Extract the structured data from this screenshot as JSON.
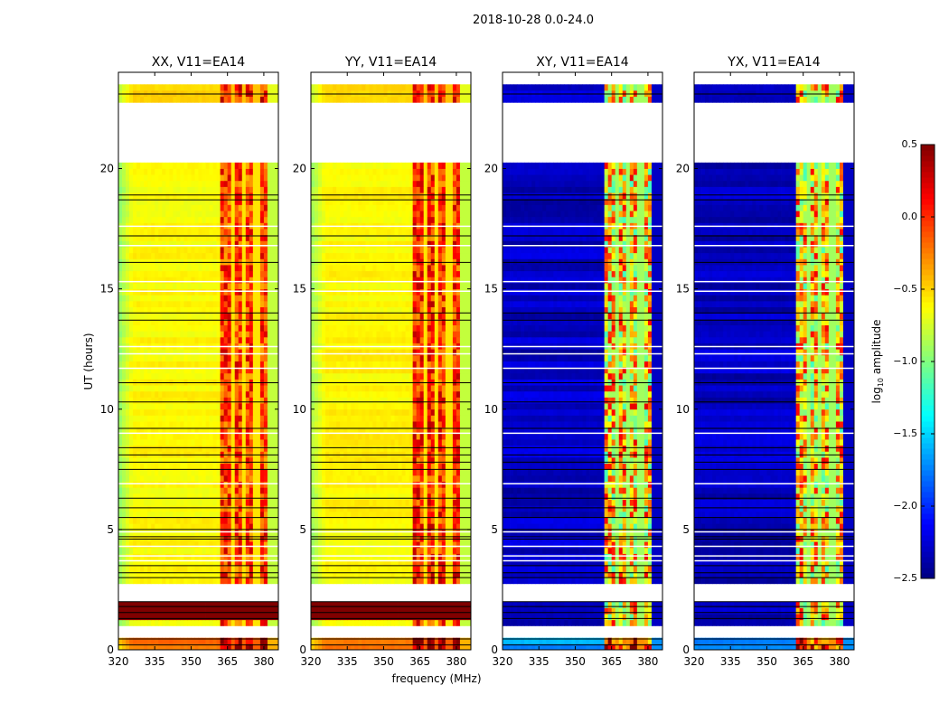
{
  "chart_data": {
    "type": "heatmap",
    "title": "2018-10-28 0.0-24.0",
    "xlabel": "frequency (MHz)",
    "ylabel": "UT (hours)",
    "xlim": [
      320,
      386
    ],
    "ylim": [
      0,
      24
    ],
    "xticks": [
      "320",
      "335",
      "350",
      "365",
      "380"
    ],
    "xtick_values": [
      320,
      335,
      350,
      365,
      380
    ],
    "yticks": [
      "0",
      "5",
      "10",
      "15",
      "20"
    ],
    "ytick_values": [
      0,
      5,
      10,
      15,
      20
    ],
    "colorbar": {
      "label": "log10 amplitude",
      "label_main": "log",
      "label_sub": "10",
      "label_rest": " amplitude",
      "range": [
        -2.5,
        0.5
      ],
      "ticks": [
        "0.5",
        "0.0",
        "−0.5",
        "−1.0",
        "−1.5",
        "−2.0",
        "−2.5"
      ],
      "tick_values": [
        0.5,
        0.0,
        -0.5,
        -1.0,
        -1.5,
        -2.0,
        -2.5
      ],
      "colormap": "jet"
    },
    "flagged_gaps_hours": [
      [
        23.5,
        24.0
      ],
      [
        20.3,
        22.7
      ],
      [
        2.03,
        2.74
      ],
      [
        0.53,
        1.09
      ]
    ],
    "flagged_lines_hours": [
      0.2,
      0.45,
      1.3,
      1.55,
      1.8,
      2.0,
      3.0,
      3.2,
      3.5,
      4.6,
      4.7,
      5.0,
      5.5,
      5.9,
      6.3,
      7.5,
      7.8,
      8.1,
      8.4,
      9.2,
      10.3,
      11.1,
      13.7,
      14.0,
      16.1,
      17.2,
      18.7,
      18.9,
      23.1
    ],
    "white_lines_hours": [
      3.7,
      3.9,
      4.3,
      4.9,
      6.9,
      9.0,
      11.7,
      12.3,
      12.6,
      14.9,
      15.3,
      16.8,
      17.6
    ],
    "band_mhz": [
      362.5,
      381.5
    ],
    "band_channel_edges_mhz": [
      367.5,
      372,
      377
    ],
    "series": [
      {
        "name": "XX, V11=EA14",
        "base_level": -0.62,
        "edge_level": -0.95,
        "band_level": -0.05,
        "band_spread": 0.35
      },
      {
        "name": "YY, V11=EA14",
        "base_level": -0.6,
        "edge_level": -0.9,
        "band_level": 0.0,
        "band_spread": 0.35
      },
      {
        "name": "XY, V11=EA14",
        "base_level": -2.3,
        "edge_level": -2.3,
        "band_level": -0.5,
        "band_spread": 0.7
      },
      {
        "name": "YX, V11=EA14",
        "base_level": -2.3,
        "edge_level": -2.3,
        "band_level": -0.5,
        "band_spread": 0.7
      }
    ]
  }
}
